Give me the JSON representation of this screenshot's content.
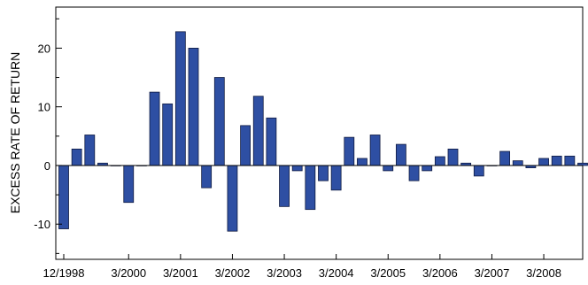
{
  "chart_data": {
    "type": "bar",
    "title": "",
    "xlabel": "",
    "ylabel": "EXCESS RATE OF RETURN",
    "ylim": [
      -16,
      27
    ],
    "yticks": [
      -10,
      0,
      10,
      20
    ],
    "grid": false,
    "legend": "none",
    "colors": {
      "bar_fill": "#2e4fa3",
      "bar_stroke": "#0f1a40"
    },
    "x_tick_labels": [
      {
        "label": "12/1998",
        "index": 0
      },
      {
        "label": "3/2000",
        "index": 5
      },
      {
        "label": "3/2001",
        "index": 9
      },
      {
        "label": "3/2002",
        "index": 13
      },
      {
        "label": "3/2003",
        "index": 17
      },
      {
        "label": "3/2004",
        "index": 21
      },
      {
        "label": "3/2005",
        "index": 25
      },
      {
        "label": "3/2006",
        "index": 29
      },
      {
        "label": "3/2007",
        "index": 33
      },
      {
        "label": "3/2008",
        "index": 37
      }
    ],
    "values": [
      -10.8,
      2.8,
      5.2,
      0.4,
      0.0,
      -6.3,
      0.0,
      12.5,
      10.5,
      22.8,
      20.0,
      -3.8,
      15.0,
      -11.2,
      6.8,
      11.8,
      8.1,
      -7.0,
      -0.9,
      -7.5,
      -2.6,
      -4.2,
      4.8,
      1.2,
      5.2,
      -0.9,
      3.6,
      -2.6,
      -0.9,
      1.5,
      2.8,
      0.4,
      -1.8,
      0.0,
      2.4,
      0.8,
      -0.4,
      1.2,
      1.6,
      1.6,
      0.4
    ]
  }
}
